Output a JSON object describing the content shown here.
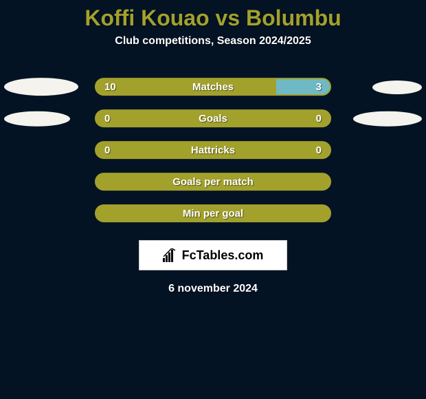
{
  "background_color": "#041324",
  "title": {
    "text": "Koffi Kouao vs Bolumbu",
    "color": "#a2a12c",
    "fontsize": 32
  },
  "subtitle": {
    "text": "Club competitions, Season 2024/2025",
    "color": "#ffffff",
    "fontsize": 16
  },
  "accent_color": "#a2a12c",
  "secondary_color": "#6fb9c4",
  "text_color": "#ffffff",
  "value_fontsize": 15,
  "label_fontsize": 15,
  "ellipse_color": "#f4f3ed",
  "rows": [
    {
      "label": "Matches",
      "left_value": "10",
      "right_value": "3",
      "left_pct": 77,
      "right_pct": 23,
      "left_color": "#a2a12c",
      "right_color": "#6fb9c4",
      "show_values": true,
      "ellipse_left_w": 108,
      "ellipse_left_h": 26,
      "ellipse_right_w": 72,
      "ellipse_right_h": 20
    },
    {
      "label": "Goals",
      "left_value": "0",
      "right_value": "0",
      "left_pct": 50,
      "right_pct": 50,
      "left_color": "#a2a12c",
      "right_color": "#a2a12c",
      "show_values": true,
      "ellipse_left_w": 96,
      "ellipse_left_h": 22,
      "ellipse_right_w": 100,
      "ellipse_right_h": 22
    },
    {
      "label": "Hattricks",
      "left_value": "0",
      "right_value": "0",
      "left_pct": 50,
      "right_pct": 50,
      "left_color": "#a2a12c",
      "right_color": "#a2a12c",
      "show_values": true,
      "ellipse_left_w": 0,
      "ellipse_left_h": 0,
      "ellipse_right_w": 0,
      "ellipse_right_h": 0
    },
    {
      "label": "Goals per match",
      "left_value": "",
      "right_value": "",
      "left_pct": 100,
      "right_pct": 0,
      "left_color": "#a2a12c",
      "right_color": "#a2a12c",
      "show_values": false,
      "ellipse_left_w": 0,
      "ellipse_left_h": 0,
      "ellipse_right_w": 0,
      "ellipse_right_h": 0
    },
    {
      "label": "Min per goal",
      "left_value": "",
      "right_value": "",
      "left_pct": 100,
      "right_pct": 0,
      "left_color": "#a2a12c",
      "right_color": "#a2a12c",
      "show_values": false,
      "ellipse_left_w": 0,
      "ellipse_left_h": 0,
      "ellipse_right_w": 0,
      "ellipse_right_h": 0
    }
  ],
  "brand": {
    "text": "FcTables.com",
    "box_bg": "#ffffff",
    "box_border": "#cccccc",
    "icon_color": "#000000"
  },
  "footer_date": {
    "text": "6 november 2024",
    "color": "#ffffff",
    "fontsize": 16
  }
}
